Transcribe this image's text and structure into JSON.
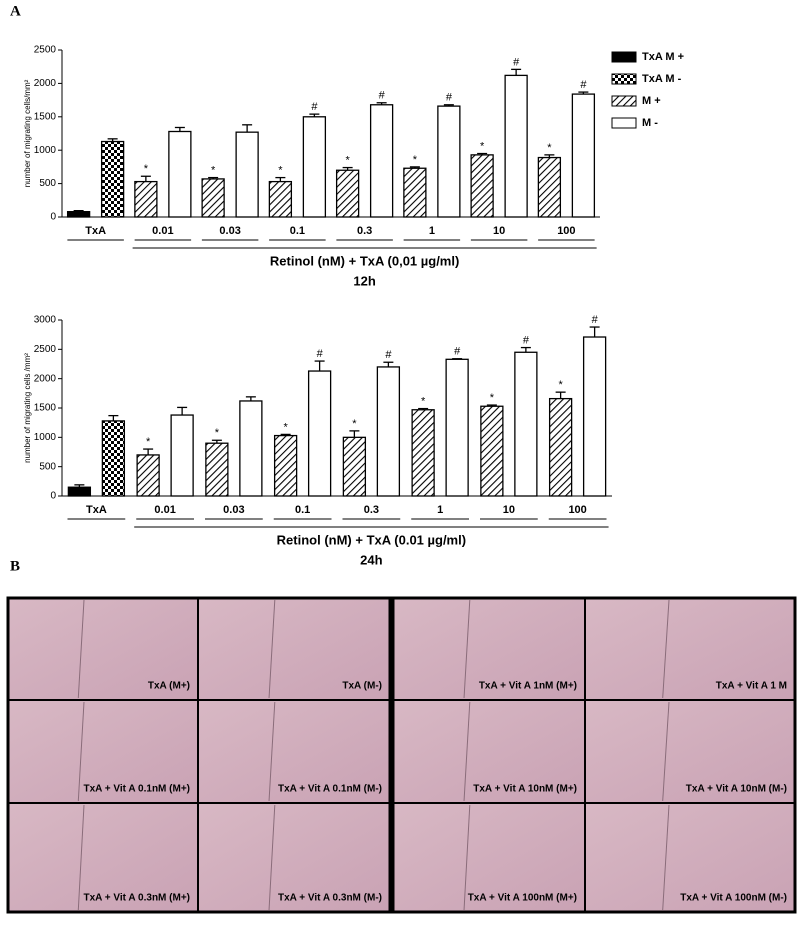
{
  "panel_labels": [
    "A",
    "B"
  ],
  "chart_data": [
    {
      "type": "bar",
      "y_label": "number of migrating cells/mm²",
      "x_group_label": "Retinol (nM) + TxA (0,01 µg/ml)",
      "subtitle": "12h",
      "categories": [
        "TxA",
        "0.01",
        "0.03",
        "0.1",
        "0.3",
        "1",
        "10",
        "100"
      ],
      "ylim": [
        0,
        2500
      ],
      "yticks": [
        0,
        500,
        1000,
        1500,
        2000,
        2500
      ],
      "legend": "right",
      "series": [
        {
          "name": "TxA M +",
          "color": "#000000",
          "pattern": "solid",
          "values": [
            80,
            null,
            null,
            null,
            null,
            null,
            null,
            null
          ],
          "errors": [
            15,
            null,
            null,
            null,
            null,
            null,
            null,
            null
          ]
        },
        {
          "name": "TxA M -",
          "color": "#000000",
          "pattern": "checker",
          "values": [
            1130,
            null,
            null,
            null,
            null,
            null,
            null,
            null
          ],
          "errors": [
            40,
            null,
            null,
            null,
            null,
            null,
            null,
            null
          ]
        },
        {
          "name": "M +",
          "color": "#000000",
          "pattern": "hatch",
          "values": [
            null,
            530,
            570,
            530,
            700,
            730,
            930,
            890
          ],
          "errors": [
            null,
            80,
            20,
            60,
            40,
            20,
            20,
            40
          ],
          "markers": [
            null,
            "*",
            "*",
            "*",
            "*",
            "*",
            "*",
            "*"
          ]
        },
        {
          "name": "M -",
          "color": "#ffffff",
          "pattern": "solid",
          "values": [
            null,
            1280,
            1270,
            1500,
            1680,
            1660,
            2120,
            1840
          ],
          "errors": [
            null,
            60,
            110,
            40,
            30,
            20,
            90,
            30
          ],
          "markers": [
            null,
            null,
            null,
            "#",
            "#",
            "#",
            "#",
            "#"
          ]
        }
      ]
    },
    {
      "type": "bar",
      "y_label": "number of migrating cells /mm²",
      "x_group_label": "Retinol (nM) + TxA (0.01 µg/ml)",
      "subtitle": "24h",
      "categories": [
        "TxA",
        "0.01",
        "0.03",
        "0.1",
        "0.3",
        "1",
        "10",
        "100"
      ],
      "ylim": [
        0,
        3000
      ],
      "yticks": [
        0,
        500,
        1000,
        1500,
        2000,
        2500,
        3000
      ],
      "series": [
        {
          "color": "#000000",
          "pattern": "solid",
          "values": [
            150,
            null,
            null,
            null,
            null,
            null,
            null,
            null
          ],
          "errors": [
            40,
            null,
            null,
            null,
            null,
            null,
            null,
            null
          ]
        },
        {
          "color": "#000000",
          "pattern": "checker",
          "values": [
            1280,
            null,
            null,
            null,
            null,
            null,
            null,
            null
          ],
          "errors": [
            90,
            null,
            null,
            null,
            null,
            null,
            null,
            null
          ]
        },
        {
          "color": "#000000",
          "pattern": "hatch",
          "values": [
            null,
            700,
            900,
            1030,
            1000,
            1470,
            1530,
            1660
          ],
          "errors": [
            null,
            100,
            50,
            20,
            110,
            20,
            20,
            110
          ],
          "markers": [
            null,
            "*",
            "*",
            "*",
            "*",
            "*",
            "*",
            "*"
          ]
        },
        {
          "color": "#ffffff",
          "pattern": "solid",
          "values": [
            null,
            1380,
            1620,
            2130,
            2200,
            2330,
            2450,
            2710
          ],
          "errors": [
            null,
            130,
            70,
            170,
            80,
            10,
            80,
            170
          ],
          "markers": [
            null,
            null,
            null,
            "#",
            "#",
            "#",
            "#",
            "#"
          ]
        }
      ]
    }
  ],
  "micrographs": [
    "TxA (M+)",
    "TxA (M-)",
    "TxA + Vit A 1nM (M+)",
    "TxA + Vit A 1 M",
    "TxA + Vit A 0.1nM (M+)",
    "TxA + Vit A 0.1nM (M-)",
    "TxA + Vit A 10nM (M+)",
    "TxA + Vit A 10nM (M-)",
    "TxA + Vit A 0.3nM (M+)",
    "TxA + Vit A 0.3nM (M-)",
    "TxA + Vit A 100nM (M+)",
    "TxA + Vit A 100nM (M-)"
  ]
}
